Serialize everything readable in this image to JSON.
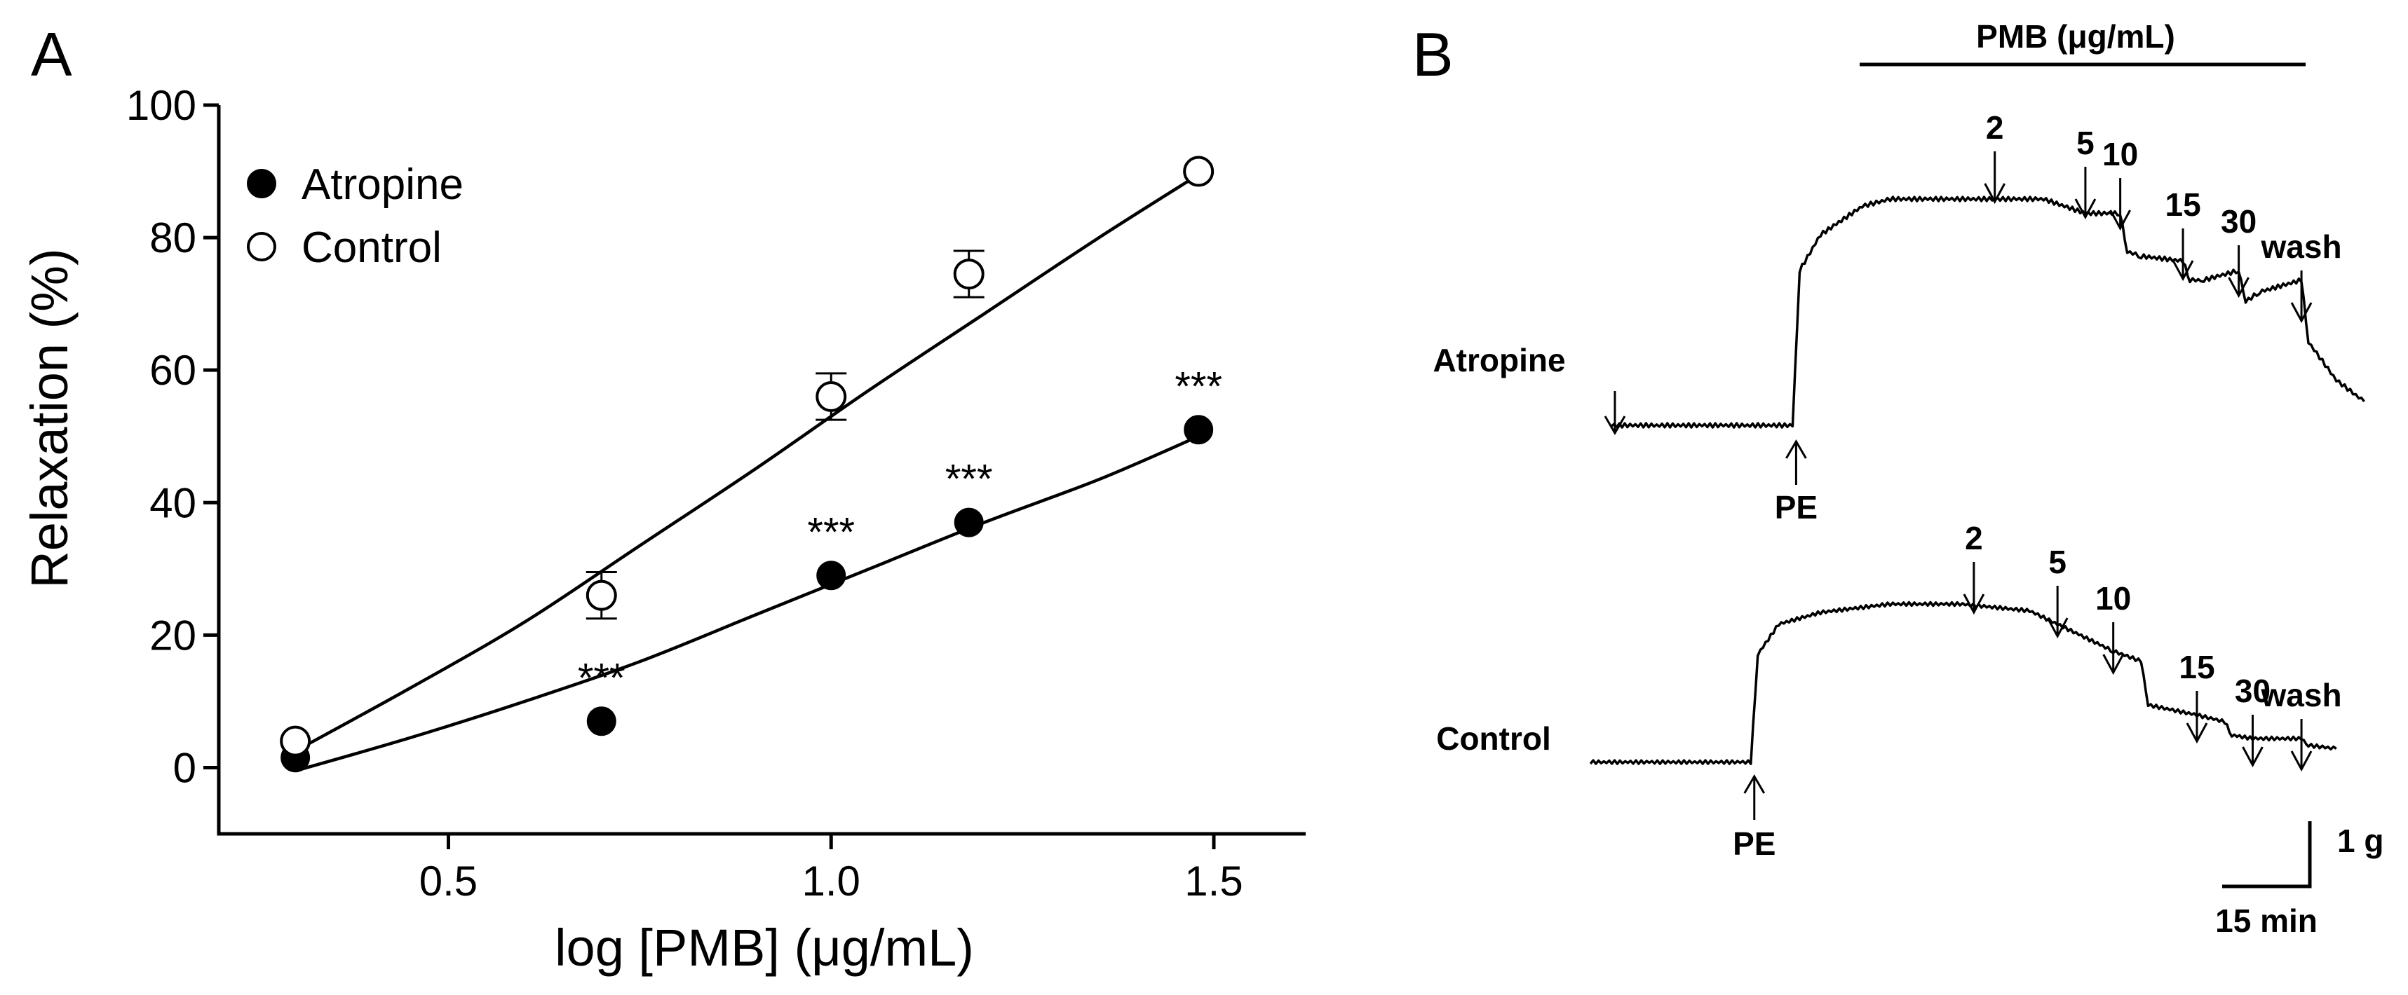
{
  "panels": {
    "a_letter": "A",
    "b_letter": "B"
  },
  "chart_data": [
    {
      "type": "scatter",
      "panel": "A",
      "xlabel": "log [PMB] (μg/mL)",
      "ylabel": "Relaxation (%)",
      "xlim": [
        0.2,
        1.62
      ],
      "ylim": [
        -10,
        100
      ],
      "xticks": [
        0.5,
        1.0,
        1.5
      ],
      "xtick_labels": [
        "0.5",
        "1.0",
        "1.5"
      ],
      "yticks": [
        0,
        20,
        40,
        60,
        80,
        100
      ],
      "ytick_labels": [
        "0",
        "20",
        "40",
        "60",
        "80",
        "100"
      ],
      "legend_position": "top-left",
      "grid": false,
      "series": [
        {
          "name": "Atropine",
          "marker": "filled-circle",
          "x": [
            0.3,
            0.7,
            1.0,
            1.18,
            1.48
          ],
          "y": [
            1.5,
            7,
            29,
            37,
            51
          ],
          "err": [
            0,
            0,
            0,
            0,
            0
          ],
          "annotations": [
            "",
            "***",
            "***",
            "***",
            "***"
          ],
          "fit": [
            [
              0.3,
              -0.5
            ],
            [
              0.45,
              4.5
            ],
            [
              0.6,
              10
            ],
            [
              0.75,
              16
            ],
            [
              0.9,
              23
            ],
            [
              1.05,
              30
            ],
            [
              1.2,
              37
            ],
            [
              1.35,
              43.5
            ],
            [
              1.48,
              50
            ]
          ]
        },
        {
          "name": "Control",
          "marker": "open-circle",
          "x": [
            0.3,
            0.7,
            1.0,
            1.18,
            1.48
          ],
          "y": [
            4,
            26,
            56,
            74.5,
            90
          ],
          "err": [
            0,
            3.5,
            3.5,
            3.5,
            0
          ],
          "annotations": [
            "",
            "",
            "",
            "",
            ""
          ],
          "fit": [
            [
              0.3,
              2.5
            ],
            [
              0.45,
              12
            ],
            [
              0.6,
              22
            ],
            [
              0.75,
              33.5
            ],
            [
              0.9,
              45
            ],
            [
              1.05,
              57
            ],
            [
              1.2,
              68.5
            ],
            [
              1.35,
              80
            ],
            [
              1.48,
              89.5
            ]
          ]
        }
      ]
    },
    {
      "type": "line",
      "panel": "B",
      "title": "PMB (μg/mL)",
      "scale_bar": {
        "vertical": "1 g",
        "horizontal": "15 min"
      },
      "series": [
        {
          "name": "Atropine",
          "trigger_label": "PE",
          "dose_labels": [
            "2",
            "5",
            "10",
            "15",
            "30",
            "wash"
          ],
          "trace_time": [
            0,
            0.26,
            0.27,
            0.3,
            0.36,
            0.4,
            0.55,
            0.62,
            0.68,
            0.73,
            0.74,
            0.76,
            0.82,
            0.83,
            0.85,
            0.9,
            0.91,
            0.93,
            0.99,
            1.0,
            1.04,
            1.08
          ],
          "trace_level": [
            0.05,
            0.05,
            0.7,
            0.85,
            0.97,
            1.0,
            1.0,
            1.0,
            0.94,
            0.94,
            0.78,
            0.76,
            0.74,
            0.66,
            0.66,
            0.7,
            0.57,
            0.61,
            0.66,
            0.4,
            0.24,
            0.15
          ]
        },
        {
          "name": "Control",
          "trigger_label": "PE",
          "dose_labels": [
            "2",
            "5",
            "10",
            "15",
            "30",
            "wash"
          ],
          "trace_time": [
            -0.03,
            0.2,
            0.21,
            0.24,
            0.3,
            0.4,
            0.5,
            0.6,
            0.64,
            0.72,
            0.76,
            0.77,
            0.84,
            0.88,
            0.89,
            0.92,
            0.99,
            1.0,
            1.04
          ],
          "trace_level": [
            0.06,
            0.06,
            0.7,
            0.88,
            0.95,
            1.0,
            1.0,
            0.96,
            0.88,
            0.72,
            0.66,
            0.4,
            0.34,
            0.3,
            0.22,
            0.2,
            0.2,
            0.16,
            0.14
          ]
        }
      ]
    }
  ]
}
